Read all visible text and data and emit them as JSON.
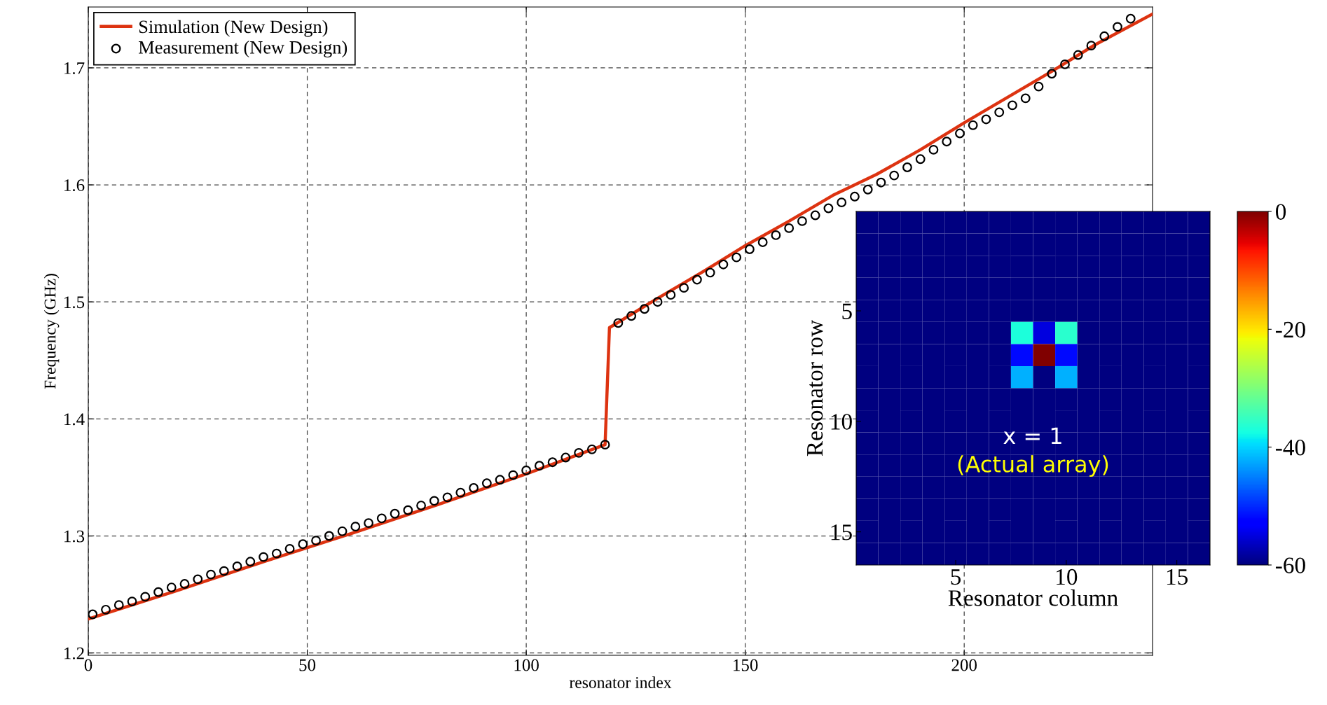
{
  "chart_data": [
    {
      "type": "line",
      "xlabel": "resonator index",
      "ylabel": "Frequency (GHz)",
      "xlim": [
        0,
        243
      ],
      "ylim": [
        1.198,
        1.752
      ],
      "xticks": [
        0,
        50,
        100,
        150,
        200
      ],
      "yticks": [
        1.2,
        1.3,
        1.4,
        1.5,
        1.6,
        1.7
      ],
      "grid": true,
      "legend": "top left",
      "series": [
        {
          "name": "Simulation (New Design)",
          "type": "line",
          "color": "#dd3311",
          "marker": "none",
          "line_style": "solid",
          "x": [
            0,
            20,
            40,
            60,
            80,
            100,
            118,
            119,
            130,
            140,
            150,
            160,
            170,
            180,
            190,
            200,
            210,
            220,
            230,
            243
          ],
          "values": [
            1.229,
            1.253,
            1.278,
            1.302,
            1.327,
            1.353,
            1.378,
            1.478,
            1.503,
            1.525,
            1.548,
            1.569,
            1.591,
            1.609,
            1.63,
            1.653,
            1.675,
            1.697,
            1.72,
            1.746
          ]
        },
        {
          "name": "Measurement (New Design)",
          "type": "scatter",
          "color": "#000000",
          "marker": "circle",
          "x": [
            1,
            4,
            7,
            10,
            13,
            16,
            19,
            22,
            25,
            28,
            31,
            34,
            37,
            40,
            43,
            46,
            49,
            52,
            55,
            58,
            61,
            64,
            67,
            70,
            73,
            76,
            79,
            82,
            85,
            88,
            91,
            94,
            97,
            100,
            103,
            106,
            109,
            112,
            115,
            118,
            121,
            124,
            127,
            130,
            133,
            136,
            139,
            142,
            145,
            148,
            151,
            154,
            157,
            160,
            163,
            166,
            169,
            172,
            175,
            178,
            181,
            184,
            187,
            190,
            193,
            196,
            199,
            202,
            205,
            208,
            211,
            214,
            217,
            220,
            223,
            226,
            229,
            232,
            235,
            238
          ],
          "values": [
            1.233,
            1.237,
            1.241,
            1.244,
            1.248,
            1.252,
            1.256,
            1.259,
            1.263,
            1.267,
            1.27,
            1.274,
            1.278,
            1.282,
            1.285,
            1.289,
            1.293,
            1.296,
            1.3,
            1.304,
            1.308,
            1.311,
            1.315,
            1.319,
            1.322,
            1.326,
            1.33,
            1.333,
            1.337,
            1.341,
            1.345,
            1.348,
            1.352,
            1.356,
            1.36,
            1.363,
            1.367,
            1.371,
            1.374,
            1.378,
            1.482,
            1.488,
            1.494,
            1.5,
            1.506,
            1.512,
            1.519,
            1.525,
            1.532,
            1.538,
            1.545,
            1.551,
            1.557,
            1.563,
            1.569,
            1.574,
            1.58,
            1.585,
            1.59,
            1.596,
            1.602,
            1.608,
            1.615,
            1.622,
            1.63,
            1.637,
            1.644,
            1.651,
            1.656,
            1.662,
            1.668,
            1.674,
            1.684,
            1.695,
            1.703,
            1.711,
            1.719,
            1.727,
            1.735,
            1.742
          ]
        }
      ]
    },
    {
      "type": "heatmap",
      "xlabel": "Resonator column",
      "ylabel": "Resonator row",
      "clim": [
        -60,
        0
      ],
      "cticks": [
        0,
        -20,
        -40,
        -60
      ],
      "annotations": [
        "x = 1",
        "(Actual array)"
      ],
      "categories": [
        null,
        null,
        null,
        null,
        "5",
        null,
        null,
        null,
        null,
        "10",
        null,
        null,
        null,
        null,
        "15",
        null
      ],
      "y_categories": [
        null,
        null,
        null,
        null,
        "5",
        null,
        null,
        null,
        null,
        "10",
        null,
        null,
        null,
        null,
        "15",
        null
      ],
      "cells": [
        [
          -60,
          -60,
          -60,
          -60,
          -60,
          -60,
          -60,
          -60,
          -60,
          -60,
          -60,
          -60,
          -60,
          -60,
          -60,
          -60
        ],
        [
          -60,
          -60,
          -60,
          -60,
          -60,
          -60,
          -60,
          -60,
          -60,
          -60,
          -60,
          -60,
          -60,
          -60,
          -60,
          -60
        ],
        [
          -60,
          -60,
          -60,
          -60,
          -60,
          -60,
          -60,
          -60,
          -60,
          -60,
          -60,
          -60,
          -60,
          -60,
          -60,
          -60
        ],
        [
          -60,
          -60,
          -60,
          -60,
          -60,
          -60,
          -60,
          -60,
          -60,
          -60,
          -60,
          -60,
          -60,
          -60,
          -60,
          -60
        ],
        [
          -60,
          -60,
          -60,
          -60,
          -60,
          -60,
          -60,
          -60,
          -60,
          -60,
          -60,
          -60,
          -60,
          -60,
          -60,
          -60
        ],
        [
          -60,
          -60,
          -60,
          -60,
          -60,
          -60,
          -60,
          -37,
          -55,
          -36,
          -60,
          -60,
          -60,
          -60,
          -60,
          -60
        ],
        [
          -60,
          -60,
          -60,
          -60,
          -60,
          -60,
          -60,
          -52,
          0,
          -52,
          -60,
          -60,
          -60,
          -60,
          -60,
          -60
        ],
        [
          -60,
          -60,
          -60,
          -60,
          -60,
          -60,
          -60,
          -42,
          -60,
          -42,
          -60,
          -60,
          -60,
          -60,
          -60,
          -60
        ],
        [
          -60,
          -60,
          -60,
          -60,
          -60,
          -60,
          -60,
          -60,
          -60,
          -60,
          -60,
          -60,
          -60,
          -60,
          -60,
          -60
        ],
        [
          -60,
          -60,
          -60,
          -60,
          -60,
          -60,
          -60,
          -60,
          -60,
          -60,
          -60,
          -60,
          -60,
          -60,
          -60,
          -60
        ],
        [
          -60,
          -60,
          -60,
          -60,
          -60,
          -60,
          -60,
          -60,
          -60,
          -60,
          -60,
          -60,
          -60,
          -60,
          -60,
          -60
        ],
        [
          -60,
          -60,
          -60,
          -60,
          -60,
          -60,
          -60,
          -60,
          -60,
          -60,
          -60,
          -60,
          -60,
          -60,
          -60,
          -60
        ],
        [
          -60,
          -60,
          -60,
          -60,
          -60,
          -60,
          -60,
          -60,
          -60,
          -60,
          -60,
          -60,
          -60,
          -60,
          -60,
          -60
        ],
        [
          -60,
          -60,
          -60,
          -60,
          -60,
          -60,
          -60,
          -60,
          -60,
          -60,
          -60,
          -60,
          -60,
          -60,
          -60,
          -60
        ],
        [
          -60,
          -60,
          -60,
          -60,
          -60,
          -60,
          -60,
          -60,
          -60,
          -60,
          -60,
          -60,
          -60,
          -60,
          -60,
          -60
        ],
        [
          -60,
          -60,
          -60,
          -60,
          -60,
          -60,
          -60,
          -60,
          -60,
          -60,
          -60,
          -60,
          -60,
          -60,
          -60,
          -60
        ]
      ]
    }
  ]
}
